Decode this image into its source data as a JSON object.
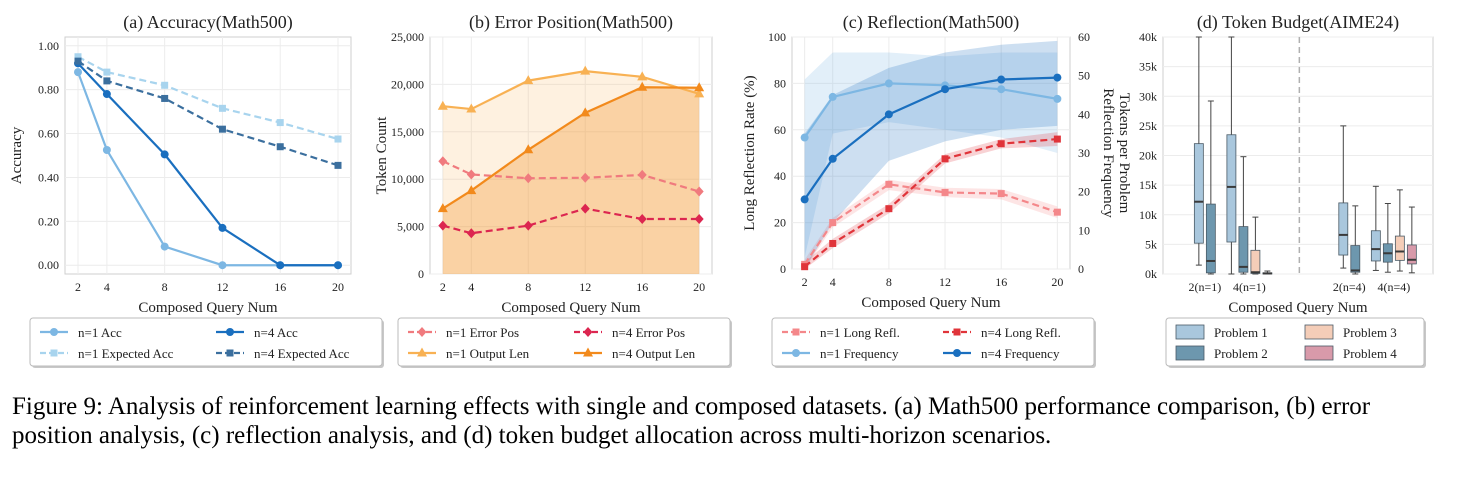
{
  "caption": "Figure 9: Analysis of reinforcement learning effects with single and composed datasets. (a) Math500 performance comparison, (b) error position analysis, (c) reflection analysis, and (d) token budget allocation across multi-horizon scenarios.",
  "colors": {
    "light_blue": "#7db7e3",
    "dark_blue": "#1a6fbf",
    "pale_blue": "#a8d4ee",
    "navy_dash": "#3b6f9e",
    "orange_light": "#f8b153",
    "orange": "#f28a1c",
    "pink": "#f07a7e",
    "crimson": "#dc2650",
    "red_light": "#f4878a",
    "red": "#e0343a",
    "box1": "#a9c7dd",
    "box2": "#6d97ae",
    "box3": "#f4cdb8",
    "box4": "#d89aaa"
  },
  "chart_data": [
    {
      "id": "a",
      "type": "line",
      "title": "(a) Accuracy(Math500)",
      "xlabel": "Composed Query Num",
      "ylabel": "Accuracy",
      "x": [
        2,
        4,
        8,
        12,
        16,
        20
      ],
      "xlim": [
        1.1,
        20.9
      ],
      "ylim": [
        -0.04,
        1.04
      ],
      "yticks": [
        0,
        0.2,
        0.4,
        0.6,
        0.8,
        1.0
      ],
      "ytick_labels": [
        "0.00",
        "0.20",
        "0.40",
        "0.60",
        "0.80",
        "1.00"
      ],
      "series": [
        {
          "name": "n=1 Acc",
          "values": [
            0.88,
            0.525,
            0.085,
            0.0,
            0.0,
            0.0
          ],
          "color": "#7db7e3",
          "dash": false,
          "marker": "circle"
        },
        {
          "name": "n=1 Expected Acc",
          "values": [
            0.95,
            0.88,
            0.82,
            0.715,
            0.65,
            0.575
          ],
          "color": "#a8d4ee",
          "dash": true,
          "marker": "square"
        },
        {
          "name": "n=4 Acc",
          "values": [
            0.92,
            0.78,
            0.505,
            0.17,
            0.0,
            0.0
          ],
          "color": "#1a6fbf",
          "dash": false,
          "marker": "circle"
        },
        {
          "name": "n=4 Expected Acc",
          "values": [
            0.93,
            0.84,
            0.76,
            0.62,
            0.54,
            0.455
          ],
          "color": "#3b6f9e",
          "dash": true,
          "marker": "square"
        }
      ],
      "legend": {
        "placement": "below",
        "rows": [
          [
            "n=1 Acc",
            "n=4 Acc"
          ],
          [
            "n=1 Expected Acc",
            "n=4 Expected Acc"
          ]
        ]
      }
    },
    {
      "id": "b",
      "type": "line",
      "title": "(b) Error Position(Math500)",
      "xlabel": "Composed Query Num",
      "ylabel": "Token Count",
      "x": [
        2,
        4,
        8,
        12,
        16,
        20
      ],
      "xlim": [
        1.1,
        20.9
      ],
      "ylim": [
        0,
        25000
      ],
      "yticks": [
        0,
        5000,
        10000,
        15000,
        20000,
        25000
      ],
      "ytick_labels": [
        "0",
        "5,000",
        "10,000",
        "15,000",
        "20,000",
        "25,000"
      ],
      "series": [
        {
          "name": "n=1 Error Pos",
          "values": [
            11900,
            10500,
            10100,
            10150,
            10450,
            8700
          ],
          "color": "#f07a7e",
          "dash": true,
          "marker": "diamond"
        },
        {
          "name": "n=1 Output Len",
          "values": [
            17700,
            17400,
            20400,
            21400,
            20800,
            19000
          ],
          "color": "#f8b153",
          "dash": false,
          "marker": "triangle",
          "fill": true,
          "fill_opacity": 0.18
        },
        {
          "name": "n=4 Error Pos",
          "values": [
            5100,
            4300,
            5100,
            6900,
            5800,
            5800
          ],
          "color": "#dc2650",
          "dash": true,
          "marker": "diamond"
        },
        {
          "name": "n=4 Output Len",
          "values": [
            6900,
            8800,
            13100,
            17000,
            19700,
            19650
          ],
          "color": "#f28a1c",
          "dash": false,
          "marker": "triangle",
          "fill": true,
          "fill_opacity": 0.3
        }
      ],
      "legend": {
        "placement": "below",
        "rows": [
          [
            "n=1 Error Pos",
            "n=4 Error Pos"
          ],
          [
            "n=1 Output Len",
            "n=4 Output Len"
          ]
        ]
      }
    },
    {
      "id": "c",
      "type": "line",
      "title": "(c) Reflection(Math500)",
      "xlabel": "Composed Query Num",
      "ylabel": "Long Reflection Rate (%)",
      "ylabel_right": [
        "Reflection Frequency",
        "Tokens per Problem"
      ],
      "x": [
        2,
        4,
        8,
        12,
        16,
        20
      ],
      "xlim": [
        1.1,
        20.9
      ],
      "ylim": [
        0,
        100
      ],
      "yticks": [
        0,
        20,
        40,
        60,
        80,
        100
      ],
      "ylim_right": [
        0,
        60
      ],
      "yticks_right": [
        0,
        10,
        20,
        30,
        40,
        50,
        60
      ],
      "series": [
        {
          "name": "n=1 Long Refl.",
          "axis": "left",
          "values": [
            2,
            20,
            36.5,
            33,
            32.5,
            24.5
          ],
          "band_low": [
            0,
            18,
            34,
            31,
            30,
            22
          ],
          "band_high": [
            4,
            22,
            38.5,
            35,
            34.5,
            27
          ],
          "color": "#f4878a",
          "dash": true,
          "marker": "square"
        },
        {
          "name": "n=1 Frequency",
          "axis": "right",
          "values": [
            34,
            44.5,
            48,
            47.5,
            46.5,
            44
          ],
          "band_low": [
            3,
            35,
            38,
            36,
            34,
            30
          ],
          "band_high": [
            49,
            56,
            56,
            55,
            56,
            56
          ],
          "color": "#7db7e3",
          "dash": false,
          "marker": "circle"
        },
        {
          "name": "n=4 Long Refl.",
          "axis": "left",
          "values": [
            1,
            11,
            26,
            47.5,
            54,
            56
          ],
          "band_low": [
            0,
            9,
            24,
            45.5,
            52,
            53
          ],
          "band_high": [
            3,
            13,
            28,
            49.5,
            56,
            59
          ],
          "color": "#e0343a",
          "dash": true,
          "marker": "square"
        },
        {
          "name": "n=4 Frequency",
          "axis": "right",
          "values": [
            18,
            28.5,
            40,
            46.5,
            49,
            49.5
          ],
          "band_low": [
            0,
            12,
            28,
            33,
            36,
            37
          ],
          "band_high": [
            35,
            45,
            52,
            56,
            58,
            59
          ],
          "color": "#1a6fbf",
          "dash": false,
          "marker": "circle"
        }
      ],
      "legend": {
        "placement": "below",
        "rows": [
          [
            "n=1 Long Refl.",
            "n=4 Long Refl."
          ],
          [
            "n=1 Frequency",
            "n=4 Frequency"
          ]
        ]
      }
    },
    {
      "id": "d",
      "type": "box",
      "title": "(d) Token Budget(AIME24)",
      "xlabel": "Composed Query Num",
      "ylabel": "",
      "ylim": [
        0,
        40000
      ],
      "yticks": [
        0,
        5000,
        10000,
        15000,
        20000,
        25000,
        30000,
        35000,
        40000
      ],
      "ytick_labels": [
        "0k",
        "5k",
        "10k",
        "15k",
        "20k",
        "25k",
        "30k",
        "35k",
        "40k"
      ],
      "categories": [
        "2(n=1)",
        "4(n=1)",
        "2(n=4)",
        "4(n=4)"
      ],
      "problems": [
        "Problem 1",
        "Problem 2",
        "Problem 3",
        "Problem 4"
      ],
      "boxes": [
        {
          "group": 0,
          "problem": 0,
          "min": 1500,
          "q1": 5200,
          "median": 12200,
          "q3": 22000,
          "max": 40000
        },
        {
          "group": 0,
          "problem": 1,
          "min": 0,
          "q1": 200,
          "median": 2200,
          "q3": 11800,
          "max": 29200
        },
        {
          "group": 1,
          "problem": 0,
          "min": 0,
          "q1": 5400,
          "median": 14700,
          "q3": 23500,
          "max": 40000
        },
        {
          "group": 1,
          "problem": 1,
          "min": 0,
          "q1": 300,
          "median": 1200,
          "q3": 8000,
          "max": 19800
        },
        {
          "group": 1,
          "problem": 2,
          "min": 0,
          "q1": 100,
          "median": 300,
          "q3": 4000,
          "max": 9600
        },
        {
          "group": 1,
          "problem": 3,
          "min": 0,
          "q1": 0,
          "median": 100,
          "q3": 200,
          "max": 500
        },
        {
          "group": 2,
          "problem": 0,
          "min": 1000,
          "q1": 3200,
          "median": 6600,
          "q3": 12000,
          "max": 25000
        },
        {
          "group": 2,
          "problem": 1,
          "min": 0,
          "q1": 300,
          "median": 600,
          "q3": 4800,
          "max": 11500
        },
        {
          "group": 3,
          "problem": 0,
          "min": 600,
          "q1": 2200,
          "median": 4200,
          "q3": 7300,
          "max": 14800
        },
        {
          "group": 3,
          "problem": 1,
          "min": 300,
          "q1": 2000,
          "median": 3500,
          "q3": 5100,
          "max": 11900
        },
        {
          "group": 3,
          "problem": 2,
          "min": 500,
          "q1": 2300,
          "median": 3800,
          "q3": 6400,
          "max": 14200
        },
        {
          "group": 3,
          "problem": 3,
          "min": 200,
          "q1": 1700,
          "median": 2400,
          "q3": 4900,
          "max": 11300
        }
      ],
      "legend": {
        "placement": "below",
        "rows": [
          [
            "Problem 1",
            "Problem 3"
          ],
          [
            "Problem 2",
            "Problem 4"
          ]
        ]
      }
    }
  ]
}
